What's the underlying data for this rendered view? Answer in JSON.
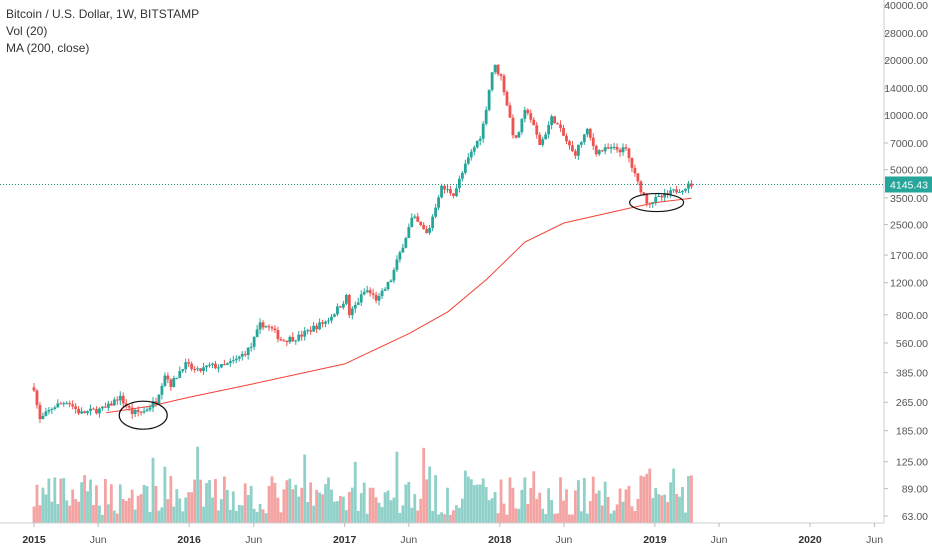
{
  "legend": {
    "symbol": "Bitcoin / U.S. Dollar, 1W, BITSTAMP",
    "volume": "Vol (20)",
    "ma": "MA (200, close)"
  },
  "chart_data": {
    "type": "candlestick",
    "title": "Bitcoin / U.S. Dollar, 1W, BITSTAMP",
    "y_scale": "log",
    "y_ticks": [
      40000,
      28000,
      20000,
      14000,
      10000,
      7000,
      5000,
      3500,
      2500,
      1700,
      1200,
      800,
      560,
      385,
      265,
      185,
      125,
      89,
      63
    ],
    "y_tick_labels": [
      "40000.00",
      "28000.00",
      "20000.00",
      "14000.00",
      "10000.00",
      "7000.00",
      "5000.00",
      "3500.00",
      "2500.00",
      "1700.00",
      "1200.00",
      "800.00",
      "560.00",
      "385.00",
      "265.00",
      "185.00",
      "125.00",
      "89.00",
      "63.00"
    ],
    "x_ticks": [
      {
        "label": "2015",
        "date": "2015-01-01",
        "year": true
      },
      {
        "label": "Jun",
        "date": "2015-06-01",
        "year": false
      },
      {
        "label": "2016",
        "date": "2016-01-01",
        "year": true
      },
      {
        "label": "Jun",
        "date": "2016-06-01",
        "year": false
      },
      {
        "label": "2017",
        "date": "2017-01-01",
        "year": true
      },
      {
        "label": "Jun",
        "date": "2017-06-01",
        "year": false
      },
      {
        "label": "2018",
        "date": "2018-01-01",
        "year": true
      },
      {
        "label": "Jun",
        "date": "2018-06-01",
        "year": false
      },
      {
        "label": "2019",
        "date": "2019-01-01",
        "year": true
      },
      {
        "label": "Jun",
        "date": "2019-06-01",
        "year": false
      },
      {
        "label": "2020",
        "date": "2020-01-01",
        "year": true
      },
      {
        "label": "Jun",
        "date": "2020-06-01",
        "year": false
      }
    ],
    "last_price": 4145.43,
    "last_price_label": "4145.43",
    "colors": {
      "up": "#26a69a",
      "down": "#ef5350",
      "vol_up": "#8fd1c8",
      "vol_down": "#f4a3a3",
      "ma": "#f44336",
      "price_line": "#1b8a7a"
    },
    "price_path": [
      [
        "2015-01-01",
        320
      ],
      [
        "2015-01-14",
        210
      ],
      [
        "2015-02-15",
        250
      ],
      [
        "2015-03-20",
        270
      ],
      [
        "2015-04-20",
        230
      ],
      [
        "2015-05-20",
        238
      ],
      [
        "2015-06-20",
        245
      ],
      [
        "2015-07-20",
        285
      ],
      [
        "2015-08-20",
        232
      ],
      [
        "2015-09-15",
        235
      ],
      [
        "2015-10-15",
        270
      ],
      [
        "2015-11-05",
        380
      ],
      [
        "2015-11-20",
        330
      ],
      [
        "2015-12-20",
        430
      ],
      [
        "2016-01-20",
        390
      ],
      [
        "2016-02-20",
        420
      ],
      [
        "2016-03-20",
        415
      ],
      [
        "2016-04-20",
        450
      ],
      [
        "2016-05-25",
        530
      ],
      [
        "2016-06-18",
        720
      ],
      [
        "2016-07-15",
        660
      ],
      [
        "2016-08-05",
        580
      ],
      [
        "2016-09-15",
        605
      ],
      [
        "2016-10-20",
        680
      ],
      [
        "2016-11-20",
        740
      ],
      [
        "2016-12-20",
        890
      ],
      [
        "2017-01-05",
        1000
      ],
      [
        "2017-01-12",
        800
      ],
      [
        "2017-02-20",
        1100
      ],
      [
        "2017-03-20",
        960
      ],
      [
        "2017-04-20",
        1250
      ],
      [
        "2017-05-20",
        2000
      ],
      [
        "2017-06-10",
        2750
      ],
      [
        "2017-07-15",
        2200
      ],
      [
        "2017-08-15",
        4000
      ],
      [
        "2017-09-15",
        3700
      ],
      [
        "2017-10-20",
        5800
      ],
      [
        "2017-11-20",
        8000
      ],
      [
        "2017-12-17",
        19000
      ],
      [
        "2018-01-05",
        16000
      ],
      [
        "2018-02-06",
        7000
      ],
      [
        "2018-03-05",
        11000
      ],
      [
        "2018-04-06",
        6800
      ],
      [
        "2018-05-05",
        9800
      ],
      [
        "2018-06-25",
        6000
      ],
      [
        "2018-07-25",
        8200
      ],
      [
        "2018-08-15",
        6300
      ],
      [
        "2018-09-20",
        6500
      ],
      [
        "2018-10-25",
        6400
      ],
      [
        "2018-11-20",
        4300
      ],
      [
        "2018-12-15",
        3300
      ],
      [
        "2019-01-20",
        3550
      ],
      [
        "2019-02-20",
        3850
      ],
      [
        "2019-03-28",
        4145
      ]
    ],
    "ma_path": [
      [
        "2015-06-20",
        232
      ],
      [
        "2015-10-01",
        252
      ],
      [
        "2016-01-01",
        282
      ],
      [
        "2016-06-01",
        335
      ],
      [
        "2017-01-01",
        430
      ],
      [
        "2017-06-01",
        630
      ],
      [
        "2017-09-01",
        830
      ],
      [
        "2017-12-01",
        1250
      ],
      [
        "2018-03-01",
        2000
      ],
      [
        "2018-06-01",
        2550
      ],
      [
        "2018-10-01",
        2960
      ],
      [
        "2019-01-01",
        3300
      ],
      [
        "2019-03-28",
        3480
      ]
    ],
    "annotations": [
      {
        "shape": "ellipse",
        "center": [
          "2015-09-15",
          225
        ]
      },
      {
        "shape": "ellipse",
        "center": [
          "2019-01-05",
          3300
        ]
      }
    ]
  }
}
